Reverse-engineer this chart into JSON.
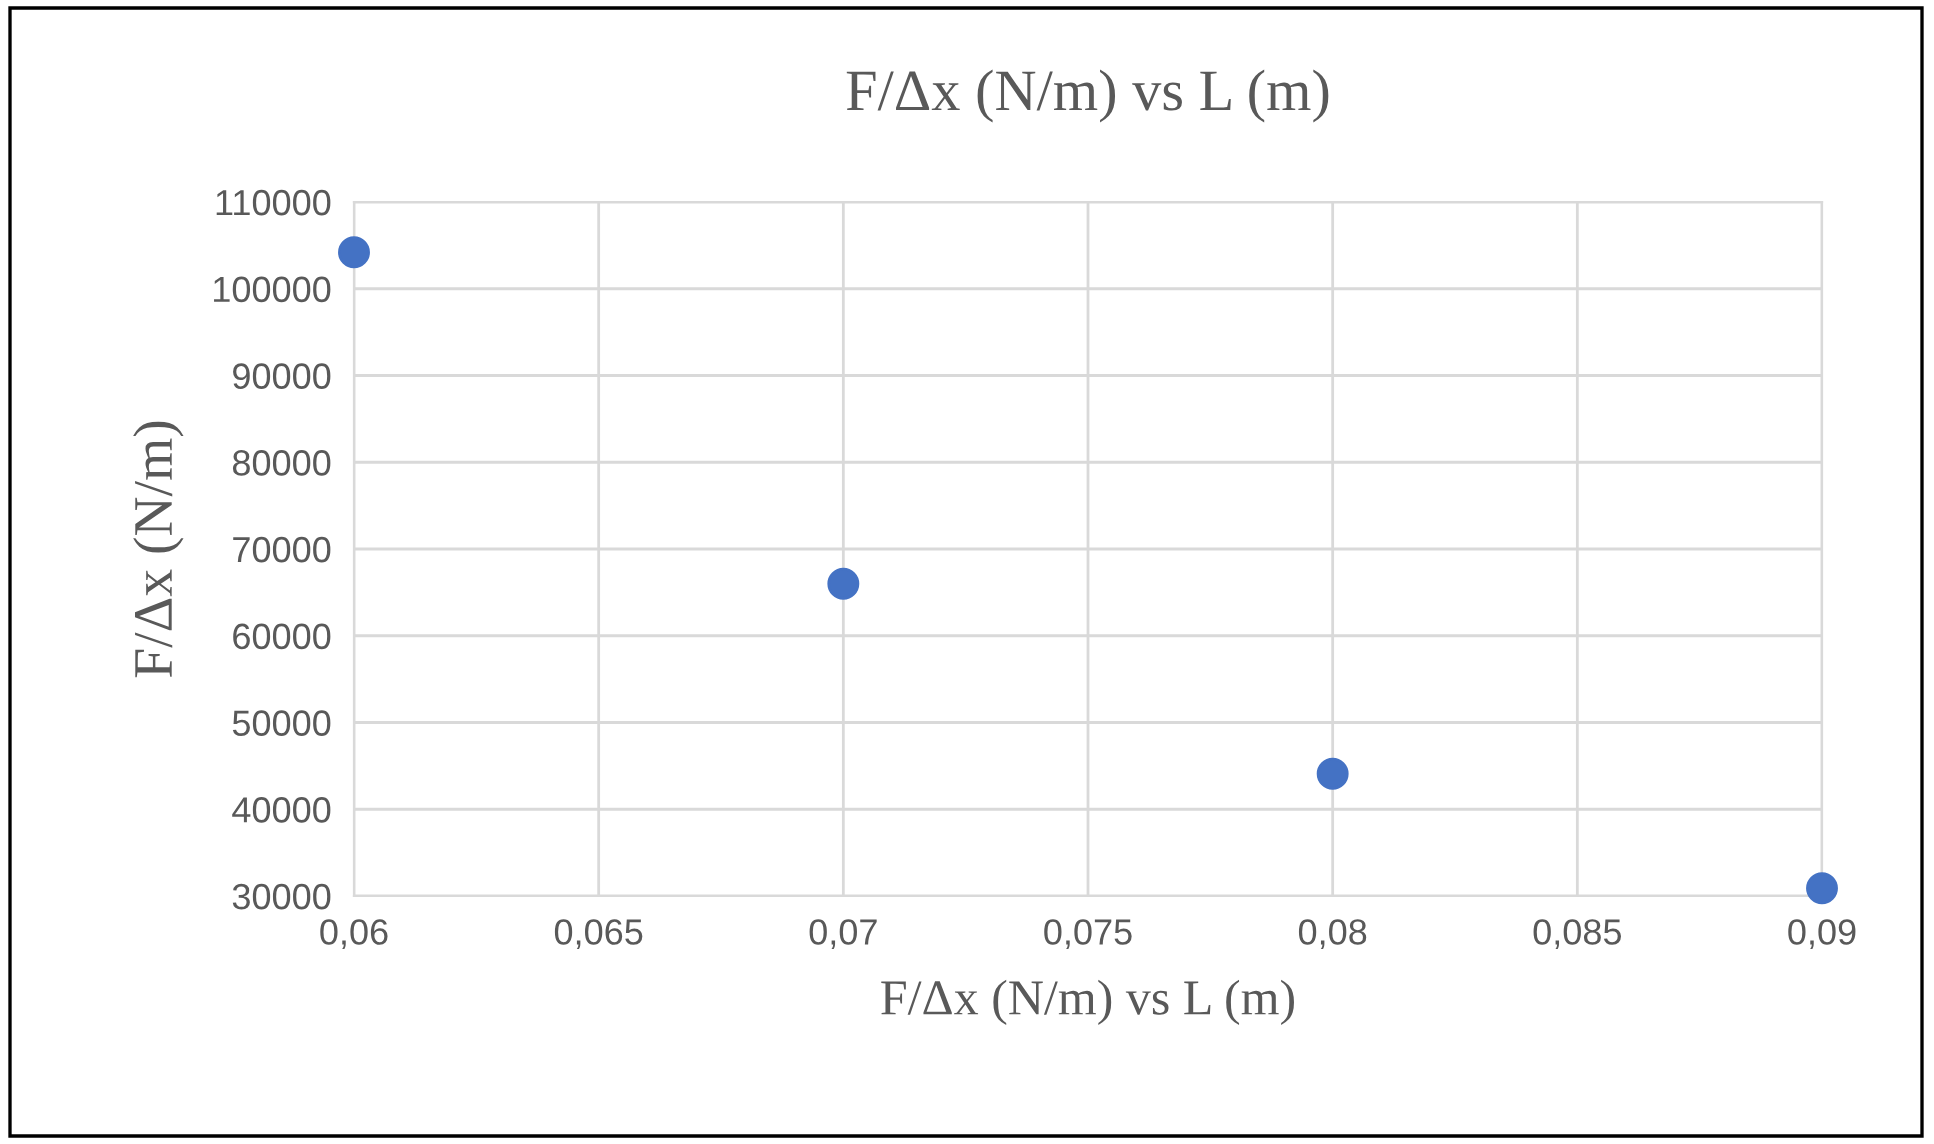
{
  "chart_data": {
    "type": "scatter",
    "title": "F/Δx (N/m) vs L (m)",
    "xlabel": "F/Δx (N/m) vs L (m)",
    "ylabel": "F/Δx (N/m)",
    "x": [
      0.06,
      0.07,
      0.08,
      0.09
    ],
    "series": [
      {
        "color": "#4472c4",
        "values": [
          104200,
          66000,
          44100,
          30900
        ]
      }
    ],
    "xlim": [
      0.06,
      0.09
    ],
    "xticks": [
      {
        "value": 0.06,
        "label": "0,06"
      },
      {
        "value": 0.065,
        "label": "0,065"
      },
      {
        "value": 0.07,
        "label": "0,07"
      },
      {
        "value": 0.075,
        "label": "0,075"
      },
      {
        "value": 0.08,
        "label": "0,08"
      },
      {
        "value": 0.085,
        "label": "0,085"
      },
      {
        "value": 0.09,
        "label": "0,09"
      }
    ],
    "ylim": [
      30000,
      110000
    ],
    "yticks": [
      30000,
      40000,
      50000,
      60000,
      70000,
      80000,
      90000,
      100000,
      110000
    ],
    "grid": true,
    "marker": "circle"
  }
}
